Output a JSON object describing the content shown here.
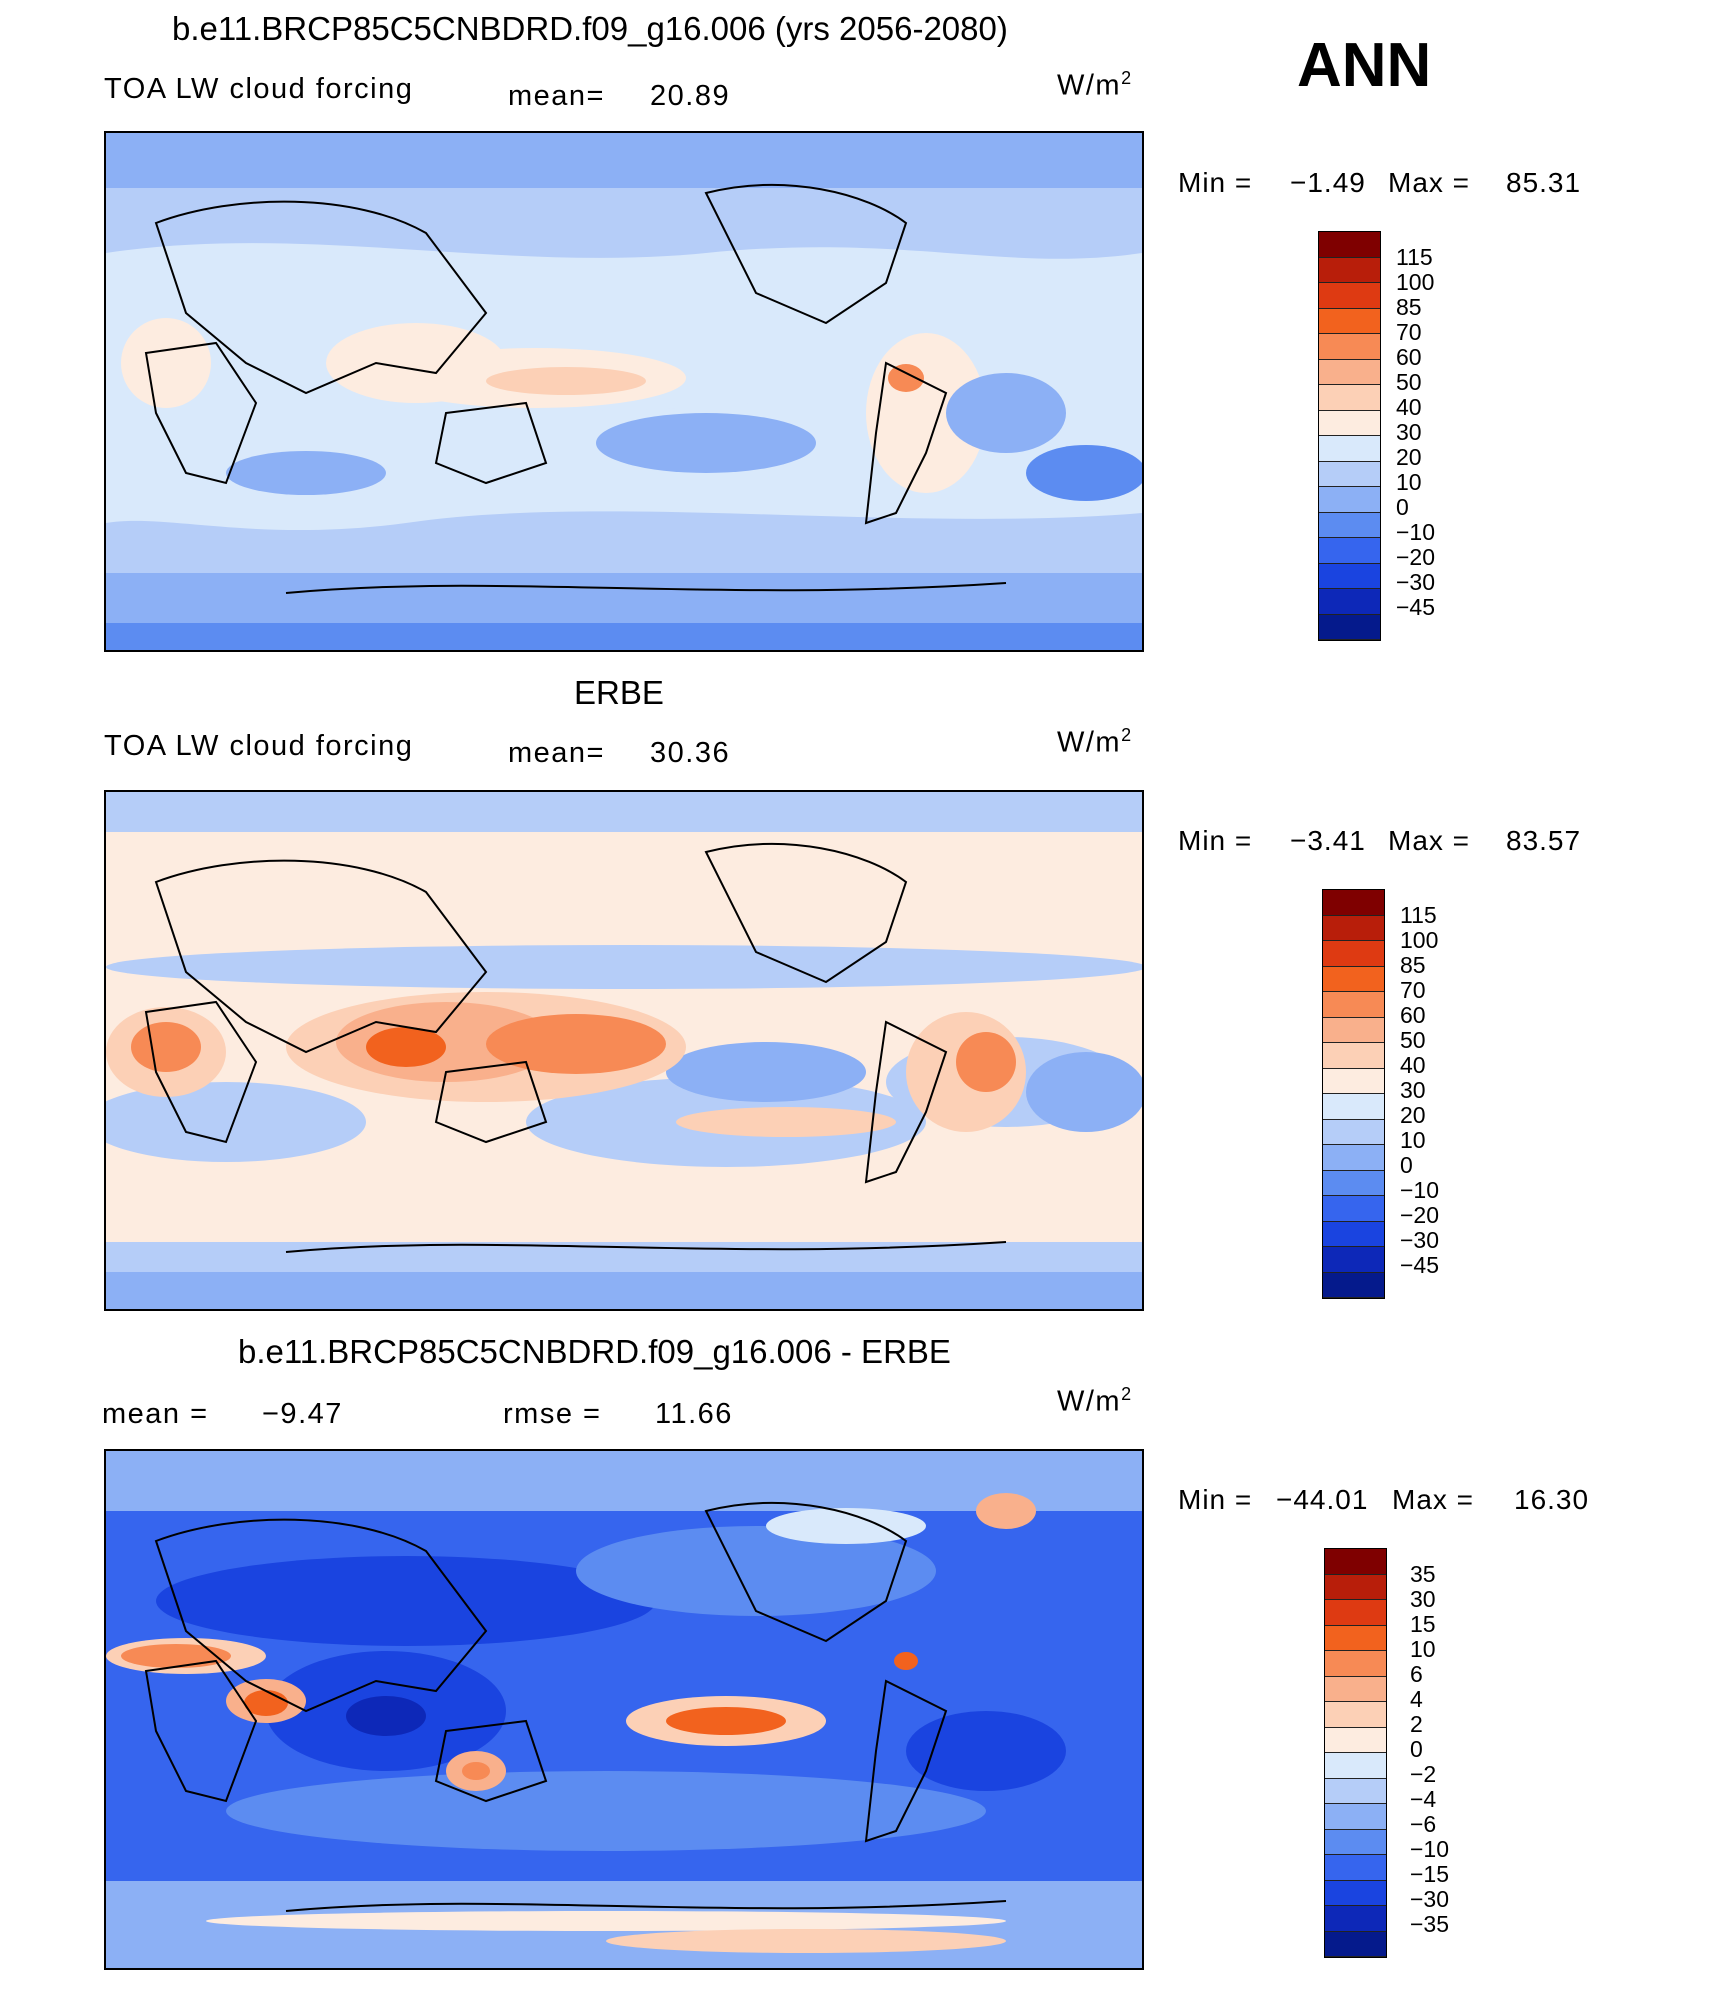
{
  "header": {
    "season": "ANN"
  },
  "colorbar_colors": [
    "#7f0000",
    "#b81e0a",
    "#de3a12",
    "#f2621e",
    "#f78a55",
    "#f9b08c",
    "#fcd0b6",
    "#fdece0",
    "#d9e9fb",
    "#b5cdf8",
    "#8cb0f5",
    "#5c8cf1",
    "#3665ee",
    "#1a44e0",
    "#0d28b8",
    "#051a8c"
  ],
  "panels": [
    {
      "title": "b.e11.BRCP85C5CNBDRD.f09_g16.006 (yrs 2056-2080)",
      "left_label": "TOA LW cloud forcing",
      "stat1_label": "mean=",
      "stat1_value": "20.89",
      "units_prefix": "W/m",
      "units_exp": "2",
      "min_label": "Min =",
      "min_value": "−1.49",
      "max_label": "Max =",
      "max_value": "85.31",
      "levels": [
        "115",
        "100",
        "85",
        "70",
        "60",
        "50",
        "40",
        "30",
        "20",
        "10",
        "0",
        "−10",
        "−20",
        "−30",
        "−45"
      ]
    },
    {
      "title": "ERBE",
      "left_label": "TOA LW cloud forcing",
      "stat1_label": "mean=",
      "stat1_value": "30.36",
      "units_prefix": "W/m",
      "units_exp": "2",
      "min_label": "Min =",
      "min_value": "−3.41",
      "max_label": "Max =",
      "max_value": "83.57",
      "levels": [
        "115",
        "100",
        "85",
        "70",
        "60",
        "50",
        "40",
        "30",
        "20",
        "10",
        "0",
        "−10",
        "−20",
        "−30",
        "−45"
      ]
    },
    {
      "title": "b.e11.BRCP85C5CNBDRD.f09_g16.006 - ERBE",
      "left_label": "mean =",
      "left_value": "−9.47",
      "stat1_label": "rmse =",
      "stat1_value": "11.66",
      "units_prefix": "W/m",
      "units_exp": "2",
      "min_label": "Min =",
      "min_value": "−44.01",
      "max_label": "Max =",
      "max_value": "16.30",
      "levels": [
        "35",
        "30",
        "15",
        "10",
        "6",
        "4",
        "2",
        "0",
        "−2",
        "−4",
        "−6",
        "−10",
        "−15",
        "−30",
        "−35"
      ]
    }
  ]
}
